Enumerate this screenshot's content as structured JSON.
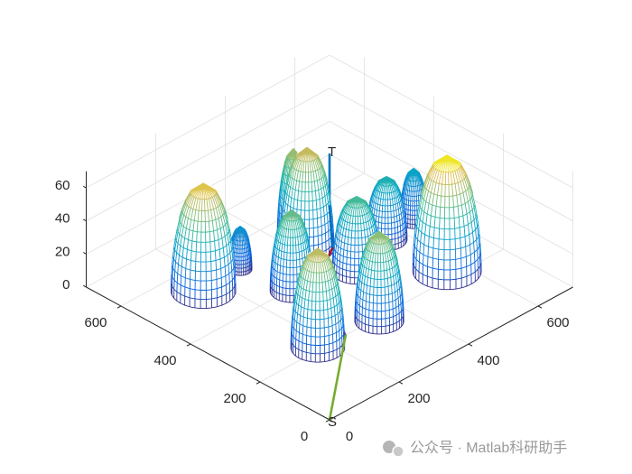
{
  "chart_data": {
    "type": "mesh3d",
    "colormap": "parula",
    "grid": true,
    "xlim": [
      0,
      700
    ],
    "ylim": [
      0,
      700
    ],
    "zlim": [
      0,
      70
    ],
    "xticks": [
      0,
      200,
      400,
      600
    ],
    "yticks": [
      0,
      200,
      400,
      600
    ],
    "zticks": [
      0,
      20,
      40,
      60
    ],
    "obstacles": {
      "x": [
        159,
        269,
        420,
        424,
        286,
        432,
        174,
        333,
        558,
        645,
        562
      ],
      "y": [
        522,
        526,
        485,
        528,
        395,
        354,
        208,
        190,
        394,
        403,
        224
      ],
      "r": [
        66,
        24,
        55,
        33,
        44,
        50,
        55,
        50,
        42,
        28,
        70
      ],
      "h": [
        65,
        26,
        61,
        55,
        49,
        45,
        60,
        54,
        38,
        32,
        70
      ]
    },
    "path": {
      "x": [
        0,
        201,
        300,
        369,
        520,
        700
      ],
      "y": [
        0,
        155,
        330,
        361,
        520,
        700
      ],
      "z": [
        0,
        10,
        15,
        20,
        10,
        0
      ],
      "segment_colors": [
        "#77ac30",
        "#7e2f8e",
        "#a2142f",
        "#0072bd",
        "#0072bd"
      ],
      "start_label": "S",
      "end_label": "T"
    }
  },
  "watermark": "公众号 · Matlab科研助手"
}
